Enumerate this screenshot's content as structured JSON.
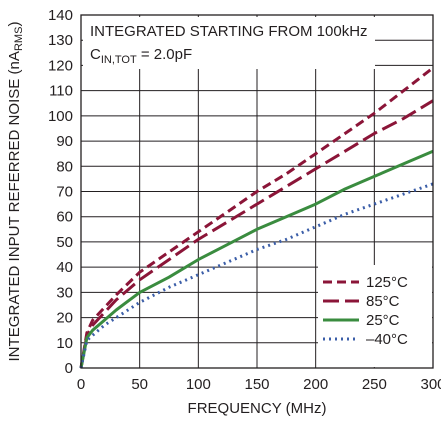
{
  "chart_data": {
    "type": "line",
    "title": "",
    "xlabel": "FREQUENCY (MHz)",
    "ylabel": "INTEGRATED INPUT REFERRED NOISE (nA",
    "ylabel_sub": "RMS",
    "ylabel_close": ")",
    "xlim": [
      0,
      300
    ],
    "ylim": [
      0,
      140
    ],
    "x_ticks": [
      0,
      50,
      100,
      150,
      200,
      250,
      300
    ],
    "x_tick_labels": [
      "0",
      "50",
      "100",
      "150",
      "200",
      "250",
      "300"
    ],
    "y_ticks": [
      0,
      10,
      20,
      30,
      40,
      50,
      60,
      70,
      80,
      90,
      100,
      110,
      120,
      130,
      140
    ],
    "y_tick_labels": [
      "0",
      "10",
      "20",
      "30",
      "40",
      "50",
      "60",
      "70",
      "80",
      "90",
      "100",
      "110",
      "120",
      "130",
      "140"
    ],
    "grid": true,
    "legend_position": "bottom-right",
    "annotations": {
      "line1": "INTEGRATED STARTING FROM 100kHz",
      "line2_main": "C",
      "line2_sub": "IN,TOT",
      "line2_rest": " = 2.0pF"
    },
    "x": [
      0,
      5,
      10,
      20,
      30,
      50,
      75,
      100,
      125,
      150,
      175,
      200,
      225,
      250,
      275,
      300
    ],
    "series": [
      {
        "name": "125°C",
        "color": "#8b1538",
        "dash": "9,5",
        "values": [
          0,
          14,
          19,
          24,
          29,
          38,
          46,
          54,
          62,
          70,
          77,
          85,
          93,
          101,
          110,
          119
        ]
      },
      {
        "name": "85°C",
        "color": "#8b1538",
        "dash": "16,6",
        "values": [
          0,
          13,
          17,
          22,
          27,
          35,
          43,
          51,
          58,
          65,
          72,
          79,
          86,
          93,
          99,
          106
        ]
      },
      {
        "name": "25°C",
        "color": "#3a8c3f",
        "dash": "",
        "values": [
          0,
          12,
          15,
          19,
          23,
          30,
          36,
          43,
          49,
          55,
          60,
          65,
          71,
          76,
          81,
          86
        ]
      },
      {
        "name": "–40°C",
        "color": "#3b5ea8",
        "dash": "2,4",
        "values": [
          0,
          11,
          13,
          17,
          20,
          26,
          32,
          37,
          42,
          47,
          51,
          56,
          61,
          65,
          69,
          73
        ]
      }
    ]
  }
}
